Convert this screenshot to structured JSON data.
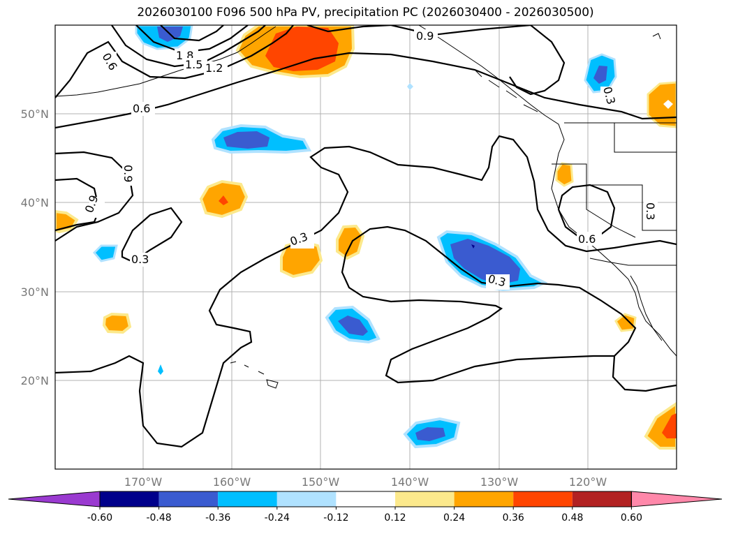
{
  "title": "2026030100 F096 500 hPa PV, precipitation PC (2026030400 - 2026030500)",
  "lon_labels": [
    "170°W",
    "160°W",
    "150°W",
    "140°W",
    "130°W",
    "120°W"
  ],
  "lat_labels": [
    "50°N",
    "40°N",
    "30°N",
    "20°N"
  ],
  "contour_labels": {
    "c1": "1.8",
    "c2": "1.5",
    "c3": "1.2",
    "c4": "0.6",
    "c5": "0.6",
    "c6": "0.9",
    "c7": "0.9",
    "c8": "0.3",
    "c9": "0.3",
    "c10": "0.3",
    "c11": "0.6",
    "c12": "0.9",
    "c13": "0.3",
    "c14": "0.3"
  },
  "colorbar": {
    "colors": [
      "#9a3ad0",
      "#00008b",
      "#3a5bd0",
      "#00bfff",
      "#b0e2ff",
      "#ffffff",
      "#fce98c",
      "#ffa500",
      "#ff4500",
      "#b22222",
      "#ff88aa"
    ],
    "ticks": [
      "-0.60",
      "-0.48",
      "-0.36",
      "-0.24",
      "-0.12",
      "0.12",
      "0.24",
      "0.36",
      "0.48",
      "0.60"
    ]
  }
}
